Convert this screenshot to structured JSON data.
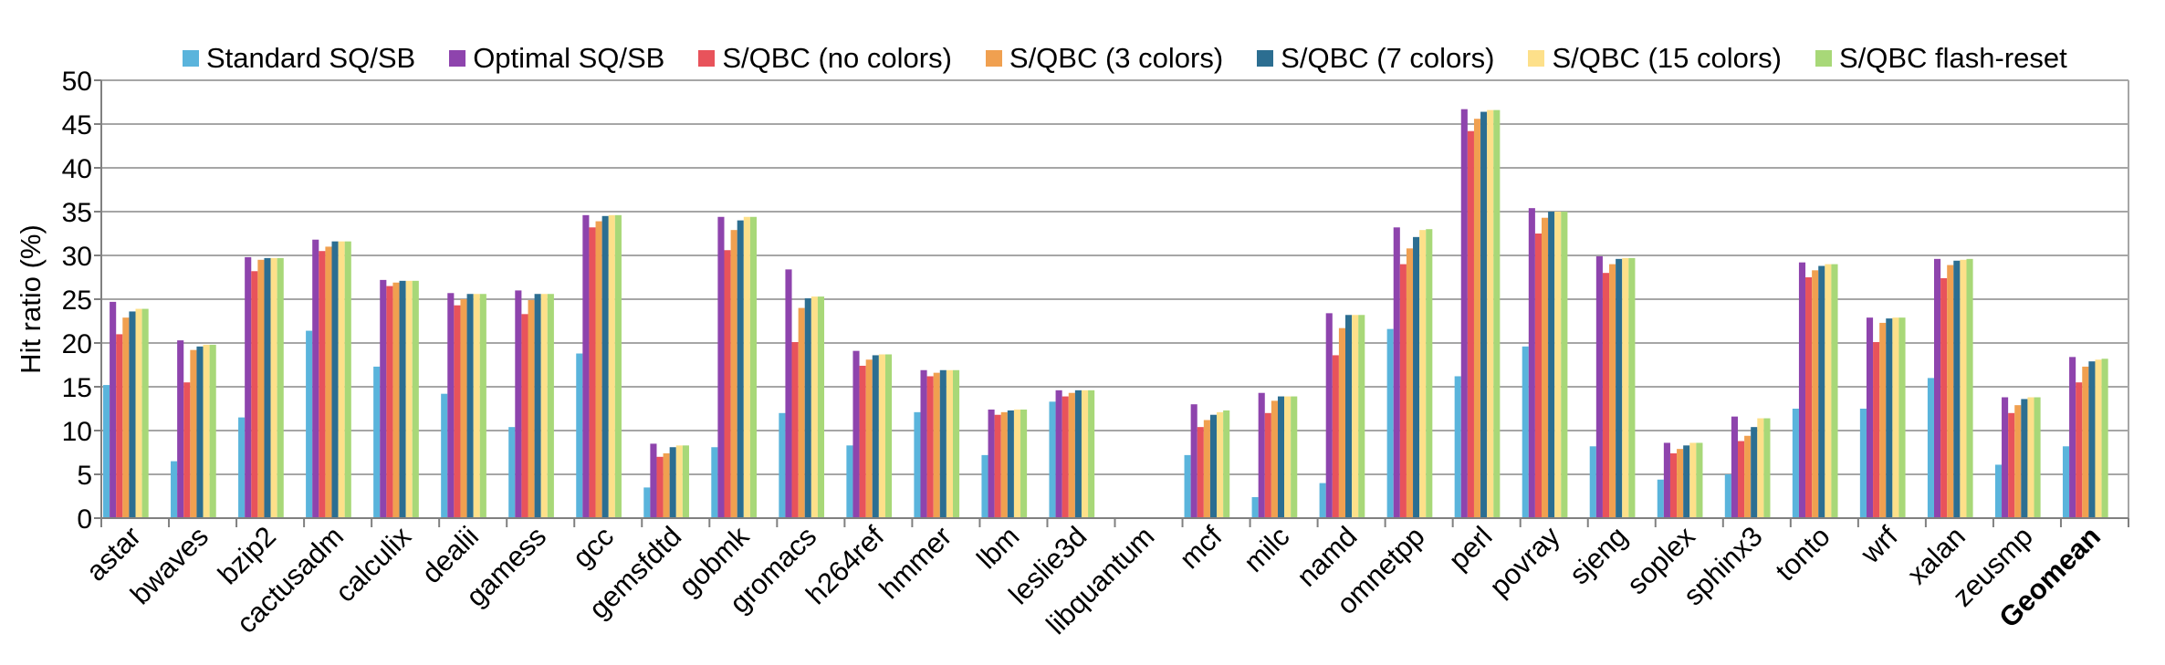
{
  "chart_data": {
    "type": "bar",
    "title": "",
    "xlabel": "",
    "ylabel": "Hit ratio (%)",
    "ylim": [
      0,
      50
    ],
    "yticks": [
      0,
      5,
      10,
      15,
      20,
      25,
      30,
      35,
      40,
      45,
      50
    ],
    "grid": true,
    "legend_position": "top",
    "categories": [
      "astar",
      "bwaves",
      "bzip2",
      "cactusadm",
      "calculix",
      "dealii",
      "gamess",
      "gcc",
      "gemsfdtd",
      "gobmk",
      "gromacs",
      "h264ref",
      "hmmer",
      "lbm",
      "leslie3d",
      "libquantum",
      "mcf",
      "milc",
      "namd",
      "omnetpp",
      "perl",
      "povray",
      "sjeng",
      "soplex",
      "sphinx3",
      "tonto",
      "wrf",
      "xalan",
      "zeusmp",
      "Geomean"
    ],
    "bold_categories": [
      "Geomean"
    ],
    "series": [
      {
        "name": "Standard SQ/SB",
        "color": "#5ab4dc",
        "values": [
          15.2,
          6.5,
          11.5,
          21.4,
          17.3,
          14.2,
          10.4,
          18.8,
          3.5,
          8.1,
          12.0,
          8.3,
          12.1,
          7.2,
          13.3,
          0.1,
          7.2,
          2.4,
          4.0,
          21.6,
          16.2,
          19.6,
          8.2,
          4.4,
          5.0,
          12.5,
          12.5,
          16.0,
          6.1,
          8.2
        ]
      },
      {
        "name": "Optimal SQ/SB",
        "color": "#8e44ad",
        "values": [
          24.7,
          20.3,
          29.8,
          31.8,
          27.2,
          25.7,
          26.0,
          34.6,
          8.5,
          34.4,
          28.4,
          19.1,
          16.9,
          12.4,
          14.6,
          0.1,
          13.0,
          14.3,
          23.4,
          33.2,
          46.7,
          35.4,
          29.9,
          8.6,
          11.6,
          29.2,
          22.9,
          29.6,
          13.8,
          18.4
        ]
      },
      {
        "name": "S/QBC (no colors)",
        "color": "#e8535b",
        "values": [
          21.0,
          15.5,
          28.2,
          30.5,
          26.5,
          24.3,
          23.3,
          33.2,
          7.0,
          30.6,
          20.1,
          17.4,
          16.2,
          11.8,
          13.9,
          0.1,
          10.4,
          12.0,
          18.6,
          29.0,
          44.2,
          32.5,
          28.0,
          7.4,
          8.8,
          27.5,
          20.1,
          27.4,
          12.0,
          15.5
        ]
      },
      {
        "name": "S/QBC (3 colors)",
        "color": "#f0a050",
        "values": [
          22.9,
          19.2,
          29.5,
          31.0,
          26.9,
          25.0,
          24.9,
          33.9,
          7.4,
          32.9,
          24.0,
          18.1,
          16.6,
          12.1,
          14.3,
          0.1,
          11.2,
          13.4,
          21.7,
          30.8,
          45.6,
          34.3,
          29.0,
          7.9,
          9.4,
          28.3,
          22.3,
          28.9,
          12.9,
          17.3
        ]
      },
      {
        "name": "S/QBC (7 colors)",
        "color": "#2c6e91",
        "values": [
          23.6,
          19.6,
          29.7,
          31.6,
          27.1,
          25.6,
          25.6,
          34.5,
          8.1,
          34.0,
          25.1,
          18.6,
          16.9,
          12.3,
          14.6,
          0.1,
          11.8,
          13.9,
          23.2,
          32.1,
          46.4,
          35.0,
          29.6,
          8.3,
          10.4,
          28.8,
          22.8,
          29.4,
          13.6,
          17.9
        ]
      },
      {
        "name": "S/QBC (15 colors)",
        "color": "#fde08a",
        "values": [
          23.9,
          19.8,
          29.7,
          31.6,
          27.1,
          25.6,
          25.6,
          34.6,
          8.3,
          34.4,
          25.3,
          18.7,
          16.9,
          12.4,
          14.6,
          0.1,
          12.1,
          13.9,
          23.2,
          32.9,
          46.6,
          35.0,
          29.7,
          8.6,
          11.4,
          29.0,
          22.9,
          29.5,
          13.8,
          18.1
        ]
      },
      {
        "name": "S/QBC flash-reset",
        "color": "#a8d878",
        "values": [
          23.9,
          19.8,
          29.7,
          31.6,
          27.1,
          25.6,
          25.6,
          34.6,
          8.3,
          34.4,
          25.3,
          18.7,
          16.9,
          12.4,
          14.6,
          0.1,
          12.3,
          13.9,
          23.2,
          33.0,
          46.6,
          35.0,
          29.7,
          8.6,
          11.4,
          29.0,
          22.9,
          29.6,
          13.8,
          18.2
        ]
      }
    ]
  }
}
